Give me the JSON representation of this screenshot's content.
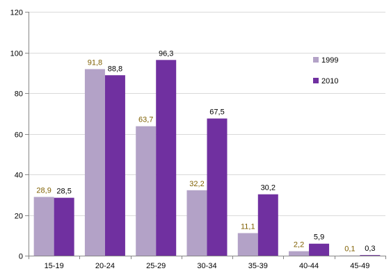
{
  "chart_data": {
    "type": "bar",
    "title": "",
    "xlabel": "",
    "ylabel": "",
    "categories": [
      "15-19",
      "20-24",
      "25-29",
      "30-34",
      "35-39",
      "40-44",
      "45-49"
    ],
    "series": [
      {
        "name": "1999",
        "color": "#b3a2c7",
        "label_color": "#7f5f00",
        "values": [
          28.9,
          91.8,
          63.7,
          32.2,
          11.1,
          2.2,
          0.1
        ],
        "labels": [
          "28,9",
          "91,8",
          "63,7",
          "32,2",
          "11,1",
          "2,2",
          "0,1"
        ]
      },
      {
        "name": "2010",
        "color": "#7030a0",
        "label_color": "#000000",
        "values": [
          28.5,
          88.8,
          96.3,
          67.5,
          30.2,
          5.9,
          0.3
        ],
        "labels": [
          "28,5",
          "88,8",
          "96,3",
          "67,5",
          "30,2",
          "5,9",
          "0,3"
        ]
      }
    ],
    "ylim": [
      0,
      120
    ],
    "yticks": [
      0,
      20,
      40,
      60,
      80,
      100,
      120
    ],
    "grid": true,
    "legend": "right"
  }
}
